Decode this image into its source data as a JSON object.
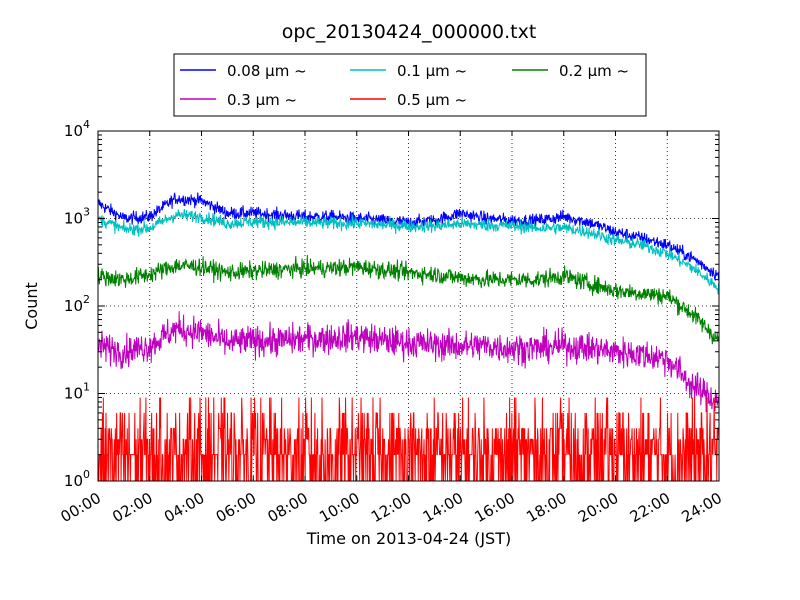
{
  "chart_data": {
    "type": "line",
    "title": "opc_20130424_000000.txt",
    "xlabel": "Time on 2013-04-24 (JST)",
    "ylabel": "Count",
    "x_ticks": [
      "00:00",
      "02:00",
      "04:00",
      "06:00",
      "08:00",
      "10:00",
      "12:00",
      "14:00",
      "16:00",
      "18:00",
      "20:00",
      "22:00",
      "24:00"
    ],
    "xlim_hours": [
      0,
      24
    ],
    "y_scale": "log",
    "ylim": [
      1,
      10000
    ],
    "y_ticks": [
      {
        "base": "10",
        "exp": "0",
        "value": 1
      },
      {
        "base": "10",
        "exp": "1",
        "value": 10
      },
      {
        "base": "10",
        "exp": "2",
        "value": 100
      },
      {
        "base": "10",
        "exp": "3",
        "value": 1000
      },
      {
        "base": "10",
        "exp": "4",
        "value": 10000
      }
    ],
    "grid": true,
    "legend_position": "top, outside plot",
    "x_hours": [
      0,
      1,
      2,
      3,
      4,
      5,
      6,
      7,
      8,
      9,
      10,
      11,
      12,
      13,
      14,
      15,
      16,
      17,
      18,
      19,
      20,
      21,
      22,
      23,
      24
    ],
    "series": [
      {
        "name": "0.08 μm ~",
        "color": "#0000ff",
        "noise": 0.05,
        "values": [
          1500,
          1000,
          1050,
          1700,
          1600,
          1150,
          1150,
          1100,
          1050,
          1050,
          1000,
          950,
          900,
          950,
          1150,
          1000,
          950,
          950,
          1050,
          900,
          700,
          600,
          500,
          350,
          220
        ]
      },
      {
        "name": "0.1 μm ~",
        "color": "#00bfbf",
        "noise": 0.05,
        "values": [
          1000,
          750,
          780,
          1100,
          1050,
          880,
          920,
          900,
          900,
          880,
          880,
          850,
          820,
          820,
          870,
          840,
          820,
          780,
          780,
          700,
          560,
          500,
          400,
          270,
          160
        ]
      },
      {
        "name": "0.2 μm ~",
        "color": "#008000",
        "noise": 0.07,
        "values": [
          220,
          200,
          230,
          290,
          280,
          240,
          250,
          260,
          270,
          270,
          280,
          260,
          240,
          230,
          210,
          200,
          200,
          200,
          220,
          180,
          150,
          140,
          130,
          80,
          40
        ]
      },
      {
        "name": "0.3 μm ~",
        "color": "#bf00bf",
        "noise": 0.12,
        "values": [
          35,
          30,
          35,
          55,
          50,
          38,
          40,
          40,
          42,
          43,
          45,
          40,
          38,
          36,
          35,
          35,
          33,
          33,
          35,
          33,
          30,
          28,
          25,
          12,
          8
        ]
      },
      {
        "name": "0.5 μm ~",
        "color": "#ff0000",
        "noise": 0,
        "values": [
          3,
          3,
          3,
          3,
          3,
          3,
          3,
          3,
          3,
          3,
          3,
          3,
          3,
          3,
          3,
          3,
          3,
          3,
          3,
          3,
          3,
          3,
          3,
          3,
          3
        ]
      }
    ]
  }
}
